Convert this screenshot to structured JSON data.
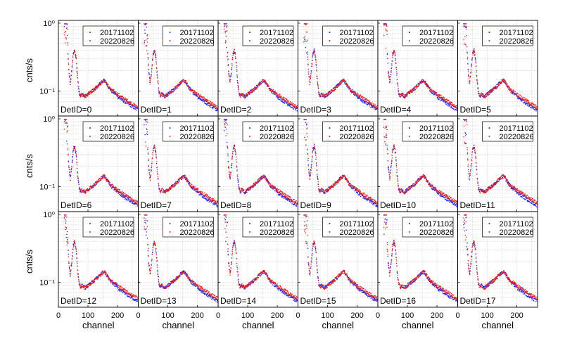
{
  "chart_data": {
    "type": "scatter",
    "layout": "3x6 small multiples (log-y)",
    "xlabel": "channel",
    "ylabel": "cnts/s",
    "xlim": [
      0,
      270
    ],
    "ylim": [
      0.045,
      1.0
    ],
    "yscale": "log",
    "xticks": [
      "0",
      "100",
      "200"
    ],
    "yticks": [
      {
        "value": 1.0,
        "label": "10⁰"
      },
      {
        "value": 0.1,
        "label": "10⁻¹"
      }
    ],
    "series": [
      {
        "name": "20171102",
        "color": "#1f1fe6"
      },
      {
        "name": "20220826",
        "color": "#e61f1f"
      }
    ],
    "panels": [
      {
        "label": "DetID=0"
      },
      {
        "label": "DetID=1"
      },
      {
        "label": "DetID=2"
      },
      {
        "label": "DetID=3"
      },
      {
        "label": "DetID=4"
      },
      {
        "label": "DetID=5"
      },
      {
        "label": "DetID=6"
      },
      {
        "label": "DetID=7"
      },
      {
        "label": "DetID=8"
      },
      {
        "label": "DetID=9"
      },
      {
        "label": "DetID=10"
      },
      {
        "label": "DetID=11"
      },
      {
        "label": "DetID=12"
      },
      {
        "label": "DetID=13"
      },
      {
        "label": "DetID=14"
      },
      {
        "label": "DetID=15"
      },
      {
        "label": "DetID=16"
      },
      {
        "label": "DetID=17"
      }
    ],
    "spectrum_shape": {
      "description": "approximate spectrum per detector, channel vs cnts/s",
      "points": [
        [
          20,
          0.85
        ],
        [
          30,
          0.55
        ],
        [
          35,
          0.2
        ],
        [
          40,
          0.13
        ],
        [
          45,
          0.2
        ],
        [
          50,
          0.35
        ],
        [
          55,
          0.4
        ],
        [
          60,
          0.3
        ],
        [
          65,
          0.15
        ],
        [
          70,
          0.095
        ],
        [
          75,
          0.085
        ],
        [
          80,
          0.09
        ],
        [
          90,
          0.083
        ],
        [
          100,
          0.09
        ],
        [
          110,
          0.098
        ],
        [
          120,
          0.105
        ],
        [
          130,
          0.115
        ],
        [
          140,
          0.128
        ],
        [
          150,
          0.14
        ],
        [
          155,
          0.143
        ],
        [
          160,
          0.135
        ],
        [
          170,
          0.115
        ],
        [
          180,
          0.1
        ],
        [
          190,
          0.093
        ],
        [
          200,
          0.086
        ],
        [
          220,
          0.075
        ],
        [
          240,
          0.066
        ],
        [
          260,
          0.058
        ],
        [
          270,
          0.055
        ]
      ]
    }
  }
}
